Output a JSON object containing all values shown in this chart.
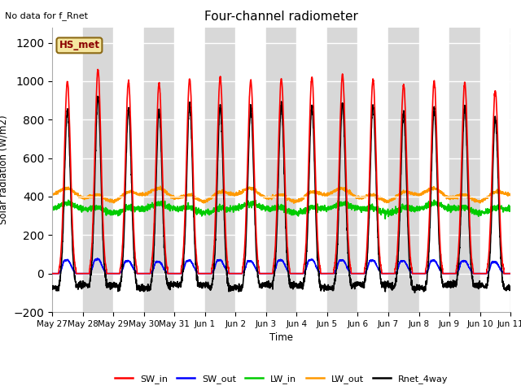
{
  "title": "Four-channel radiometer",
  "annotation": "No data for f_Rnet",
  "ylabel": "Solar radiation (W/m2)",
  "xlabel": "Time",
  "ylim": [
    -200,
    1280
  ],
  "yticks": [
    -200,
    0,
    200,
    400,
    600,
    800,
    1000,
    1200
  ],
  "fig_bg": "#ffffff",
  "plot_bg_even": "#ffffff",
  "plot_bg_odd": "#e8e8e8",
  "legend_label": "HS_met",
  "legend_bg": "#f5e6a0",
  "legend_border": "#8b6914",
  "lines": {
    "SW_in": {
      "color": "#ff0000",
      "lw": 1.2
    },
    "SW_out": {
      "color": "#0000ff",
      "lw": 1.2
    },
    "LW_in": {
      "color": "#00cc00",
      "lw": 1.2
    },
    "LW_out": {
      "color": "#ff9900",
      "lw": 1.2
    },
    "Rnet_4way": {
      "color": "#000000",
      "lw": 1.2
    }
  },
  "n_days": 15,
  "dt": 0.005,
  "day_labels": [
    "May 27",
    "May 28",
    "May 29",
    "May 30",
    "May 31",
    "Jun 1",
    "Jun 2",
    "Jun 3",
    "Jun 4",
    "Jun 5",
    "Jun 6",
    "Jun 7",
    "Jun 8",
    "Jun 9",
    "Jun 10",
    "Jun 11"
  ]
}
